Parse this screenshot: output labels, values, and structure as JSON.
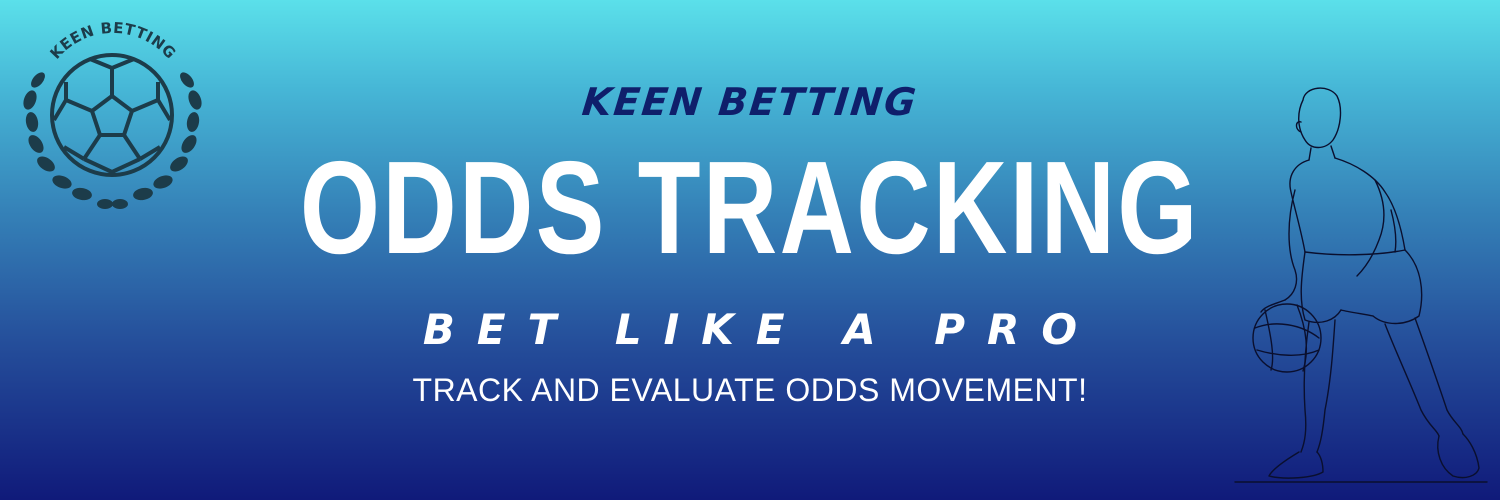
{
  "logo": {
    "text": "KEEN BETTING",
    "icon": "soccer-ball-laurel-icon"
  },
  "banner": {
    "brand": "KEEN BETTING",
    "headline": "ODDS TRACKING",
    "tagline": "BET LIKE A PRO",
    "subtitle": "TRACK AND EVALUATE ODDS MOVEMENT!"
  },
  "illustration": {
    "icon": "basketball-player-line-art-icon"
  },
  "colors": {
    "gradient_top": "#5be0ea",
    "gradient_bottom": "#101a7a",
    "brand_text": "#0f1f6b",
    "headline_text": "#ffffff",
    "logo_ink": "#1c3c4a"
  }
}
